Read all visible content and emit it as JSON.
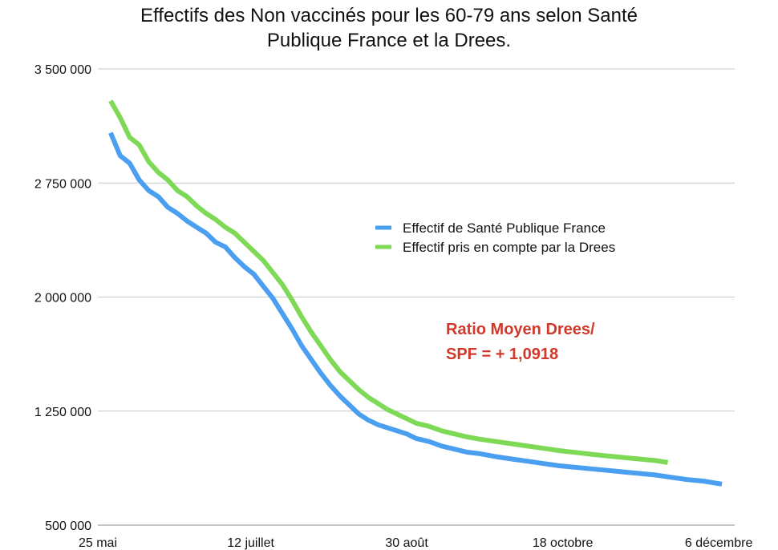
{
  "chart_data": {
    "type": "line",
    "title_lines": [
      "Effectifs des Non vaccinés pour les 60-79 ans selon Santé",
      "Publique France et la Drees."
    ],
    "xlabel": "",
    "ylabel": "",
    "x_tick_labels": [
      "25 mai",
      "12 juillet",
      "30 août",
      "18 octobre",
      "6 décembre"
    ],
    "x_tick_days": [
      0,
      48,
      97,
      146,
      195
    ],
    "x_unit": "days since 25 mai",
    "y_tick_labels": [
      "500 000",
      "1 250 000",
      "2 000 000",
      "2 750 000",
      "3 500 000"
    ],
    "y_ticks": [
      500000,
      1250000,
      2000000,
      2750000,
      3500000
    ],
    "ylim": [
      500000,
      3500000
    ],
    "xlim": [
      0,
      200
    ],
    "grid": "horizontal",
    "legend_position": "center-right",
    "series": [
      {
        "name": "Effectif de Santé Publique France",
        "color": "#4a9ff0",
        "points": [
          [
            4,
            3080000
          ],
          [
            7,
            2930000
          ],
          [
            10,
            2880000
          ],
          [
            13,
            2770000
          ],
          [
            16,
            2700000
          ],
          [
            19,
            2660000
          ],
          [
            22,
            2590000
          ],
          [
            25,
            2550000
          ],
          [
            28,
            2500000
          ],
          [
            31,
            2460000
          ],
          [
            34,
            2420000
          ],
          [
            37,
            2360000
          ],
          [
            40,
            2330000
          ],
          [
            43,
            2260000
          ],
          [
            46,
            2200000
          ],
          [
            49,
            2150000
          ],
          [
            52,
            2070000
          ],
          [
            55,
            1990000
          ],
          [
            58,
            1890000
          ],
          [
            61,
            1790000
          ],
          [
            64,
            1680000
          ],
          [
            67,
            1590000
          ],
          [
            70,
            1500000
          ],
          [
            73,
            1420000
          ],
          [
            76,
            1350000
          ],
          [
            79,
            1290000
          ],
          [
            82,
            1230000
          ],
          [
            85,
            1190000
          ],
          [
            88,
            1160000
          ],
          [
            91,
            1140000
          ],
          [
            94,
            1120000
          ],
          [
            97,
            1100000
          ],
          [
            100,
            1070000
          ],
          [
            104,
            1050000
          ],
          [
            108,
            1020000
          ],
          [
            112,
            1000000
          ],
          [
            116,
            980000
          ],
          [
            120,
            970000
          ],
          [
            125,
            950000
          ],
          [
            130,
            935000
          ],
          [
            135,
            920000
          ],
          [
            140,
            905000
          ],
          [
            145,
            890000
          ],
          [
            150,
            880000
          ],
          [
            155,
            870000
          ],
          [
            160,
            860000
          ],
          [
            165,
            850000
          ],
          [
            170,
            840000
          ],
          [
            175,
            830000
          ],
          [
            180,
            815000
          ],
          [
            185,
            800000
          ],
          [
            190,
            790000
          ],
          [
            196,
            770000
          ]
        ]
      },
      {
        "name": "Effectif pris en compte par la Drees",
        "color": "#7ed957",
        "points": [
          [
            4,
            3290000
          ],
          [
            7,
            3180000
          ],
          [
            10,
            3050000
          ],
          [
            13,
            3000000
          ],
          [
            16,
            2890000
          ],
          [
            19,
            2820000
          ],
          [
            22,
            2770000
          ],
          [
            25,
            2700000
          ],
          [
            28,
            2660000
          ],
          [
            31,
            2600000
          ],
          [
            34,
            2550000
          ],
          [
            37,
            2510000
          ],
          [
            40,
            2460000
          ],
          [
            43,
            2420000
          ],
          [
            46,
            2360000
          ],
          [
            49,
            2300000
          ],
          [
            52,
            2240000
          ],
          [
            55,
            2160000
          ],
          [
            58,
            2080000
          ],
          [
            61,
            1980000
          ],
          [
            64,
            1870000
          ],
          [
            67,
            1770000
          ],
          [
            70,
            1680000
          ],
          [
            73,
            1590000
          ],
          [
            76,
            1510000
          ],
          [
            79,
            1450000
          ],
          [
            82,
            1390000
          ],
          [
            85,
            1340000
          ],
          [
            88,
            1300000
          ],
          [
            91,
            1260000
          ],
          [
            94,
            1230000
          ],
          [
            97,
            1200000
          ],
          [
            100,
            1170000
          ],
          [
            104,
            1150000
          ],
          [
            108,
            1120000
          ],
          [
            112,
            1100000
          ],
          [
            116,
            1080000
          ],
          [
            120,
            1065000
          ],
          [
            125,
            1050000
          ],
          [
            130,
            1035000
          ],
          [
            135,
            1020000
          ],
          [
            140,
            1005000
          ],
          [
            145,
            990000
          ],
          [
            150,
            978000
          ],
          [
            155,
            966000
          ],
          [
            160,
            955000
          ],
          [
            165,
            945000
          ],
          [
            170,
            935000
          ],
          [
            175,
            925000
          ],
          [
            179,
            912000
          ]
        ]
      }
    ],
    "annotation_lines": [
      "Ratio Moyen Drees/",
      "SPF = + 1,0918"
    ],
    "colors": {
      "annotation": "#d0392b",
      "grid": "#c8c8c8",
      "axis": "#888888"
    }
  }
}
